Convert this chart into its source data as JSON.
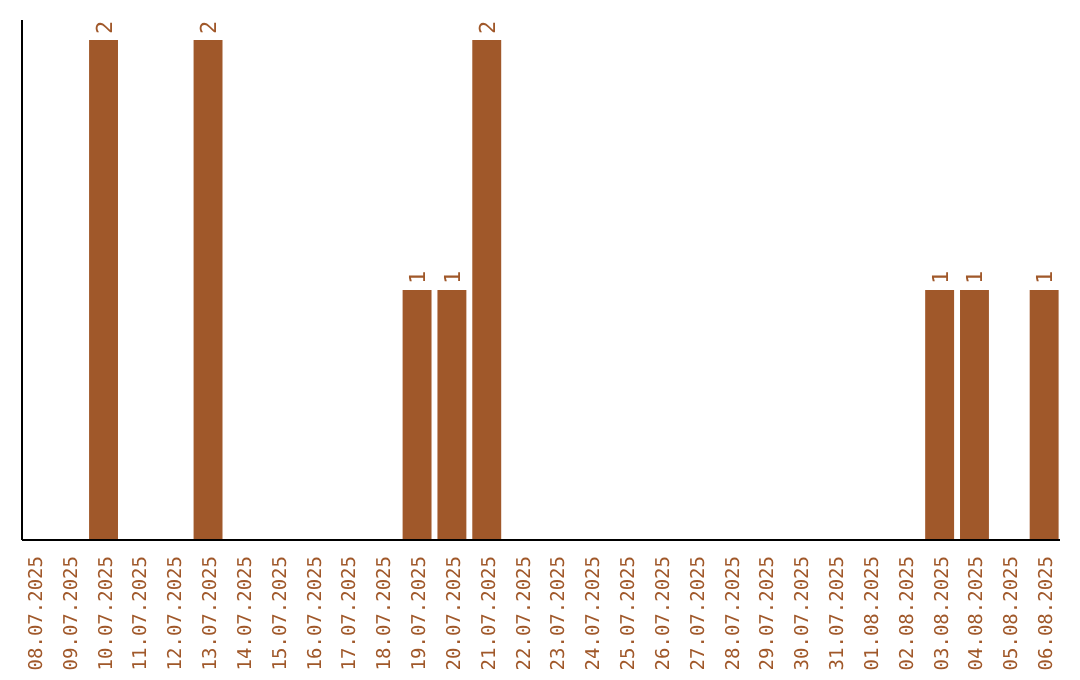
{
  "chart_data": {
    "type": "bar",
    "categories": [
      "08.07.2025",
      "09.07.2025",
      "10.07.2025",
      "11.07.2025",
      "12.07.2025",
      "13.07.2025",
      "14.07.2025",
      "15.07.2025",
      "16.07.2025",
      "17.07.2025",
      "18.07.2025",
      "19.07.2025",
      "20.07.2025",
      "21.07.2025",
      "22.07.2025",
      "23.07.2025",
      "24.07.2025",
      "25.07.2025",
      "26.07.2025",
      "27.07.2025",
      "28.07.2025",
      "29.07.2025",
      "30.07.2025",
      "31.07.2025",
      "01.08.2025",
      "02.08.2025",
      "03.08.2025",
      "04.08.2025",
      "05.08.2025",
      "06.08.2025"
    ],
    "values": [
      0,
      0,
      2,
      0,
      0,
      2,
      0,
      0,
      0,
      0,
      0,
      1,
      1,
      2,
      0,
      0,
      0,
      0,
      0,
      0,
      0,
      0,
      0,
      0,
      0,
      0,
      1,
      1,
      0,
      1
    ],
    "value_labels": [
      null,
      null,
      "2",
      null,
      null,
      "2",
      null,
      null,
      null,
      null,
      null,
      "1",
      "1",
      "2",
      null,
      null,
      null,
      null,
      null,
      null,
      null,
      null,
      null,
      null,
      null,
      null,
      "1",
      "1",
      null,
      "1"
    ],
    "color": "#a0582a"
  }
}
